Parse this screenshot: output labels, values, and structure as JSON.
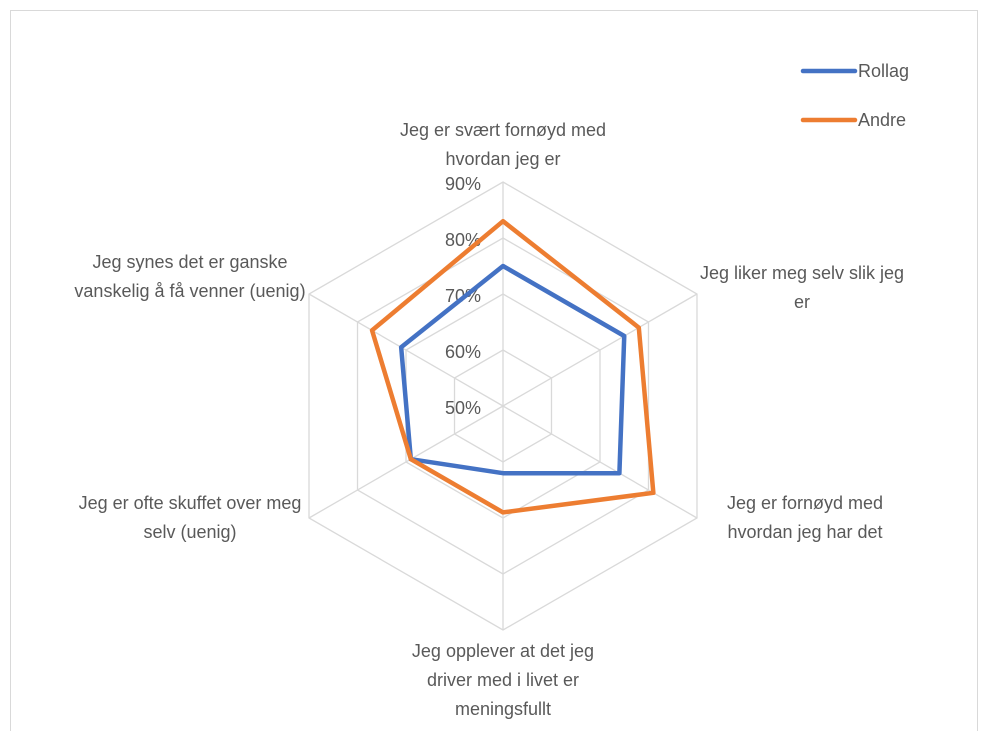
{
  "chart_data": {
    "type": "radar",
    "categories": [
      "Jeg er svært fornøyd med hvordan jeg er",
      "Jeg liker meg selv slik jeg er",
      "Jeg er fornøyd med hvordan jeg har det",
      "Jeg opplever at det jeg driver med i livet er meningsfullt",
      "Jeg er ofte skuffet over meg selv (uenig)",
      "Jeg synes det er ganske vanskelig å få venner (uenig)"
    ],
    "series": [
      {
        "name": "Rollag",
        "color": "#4472c4",
        "values": [
          75,
          75,
          74,
          62,
          69,
          71
        ]
      },
      {
        "name": "Andre",
        "color": "#ed7d31",
        "values": [
          83,
          78,
          81,
          69,
          69,
          77
        ]
      }
    ],
    "ylim": [
      50,
      90
    ],
    "yticks": [
      {
        "value": 50,
        "label": "50%"
      },
      {
        "value": 60,
        "label": "60%"
      },
      {
        "value": 70,
        "label": "70%"
      },
      {
        "value": 80,
        "label": "80%"
      },
      {
        "value": 90,
        "label": "90%"
      }
    ],
    "grid": true,
    "legend": "top-right"
  }
}
